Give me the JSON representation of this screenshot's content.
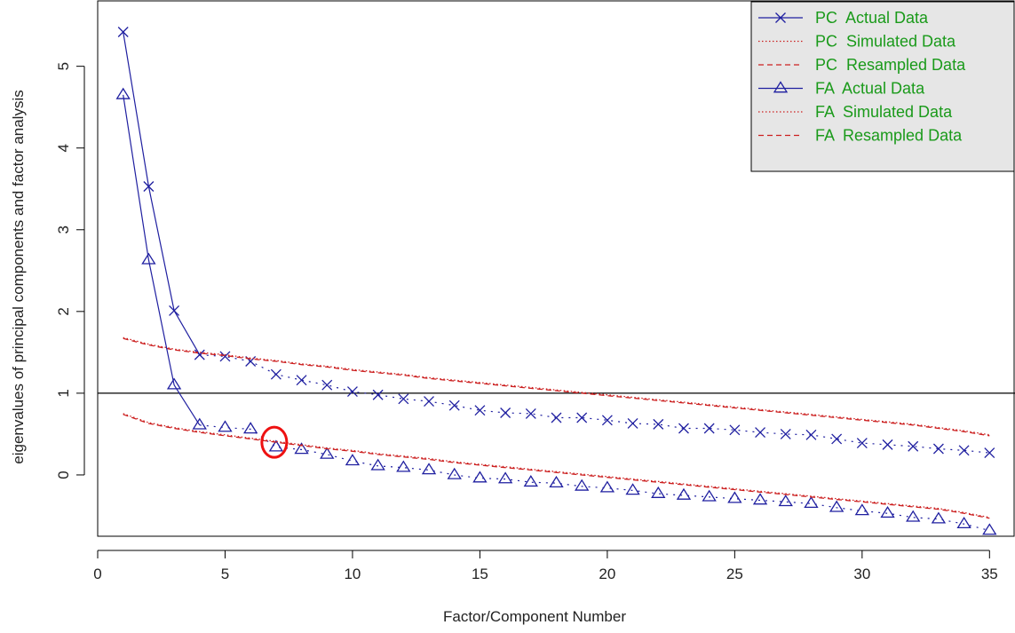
{
  "colors": {
    "actual": "#1f1fa0",
    "simulated": "#cc2020",
    "resampled": "#cc2020",
    "legend_text": "#1a9a1a",
    "legend_bg": "#e6e6e6",
    "highlight": "#ee1111",
    "reference_line": "#000000"
  },
  "chart_data": {
    "type": "line",
    "title": "",
    "xlabel": "Factor/Component Number",
    "ylabel": "eigenvalues of principal components and factor analysis",
    "xlim": [
      0,
      36
    ],
    "ylim": [
      -0.75,
      5.8
    ],
    "xticks": [
      0,
      5,
      10,
      15,
      20,
      25,
      30,
      35
    ],
    "yticks": [
      0,
      1,
      2,
      3,
      4,
      5
    ],
    "reference_line_y": 1,
    "legend_position": "top-right",
    "x": [
      1,
      2,
      3,
      4,
      5,
      6,
      7,
      8,
      9,
      10,
      11,
      12,
      13,
      14,
      15,
      16,
      17,
      18,
      19,
      20,
      21,
      22,
      23,
      24,
      25,
      26,
      27,
      28,
      29,
      30,
      31,
      32,
      33,
      34,
      35
    ],
    "series": [
      {
        "name": "PC  Actual Data",
        "marker": "x",
        "values": [
          5.42,
          3.53,
          2.01,
          1.47,
          1.45,
          1.39,
          1.23,
          1.16,
          1.1,
          1.02,
          0.98,
          0.93,
          0.9,
          0.85,
          0.79,
          0.76,
          0.75,
          0.7,
          0.7,
          0.67,
          0.63,
          0.62,
          0.57,
          0.57,
          0.55,
          0.52,
          0.5,
          0.49,
          0.44,
          0.39,
          0.37,
          0.35,
          0.32,
          0.3,
          0.27
        ]
      },
      {
        "name": "PC  Simulated Data",
        "style": "dotted",
        "values": [
          1.68,
          1.6,
          1.54,
          1.5,
          1.47,
          1.43,
          1.4,
          1.36,
          1.33,
          1.29,
          1.26,
          1.23,
          1.19,
          1.16,
          1.13,
          1.1,
          1.07,
          1.04,
          1.01,
          0.98,
          0.95,
          0.92,
          0.89,
          0.86,
          0.83,
          0.8,
          0.77,
          0.74,
          0.71,
          0.68,
          0.65,
          0.62,
          0.58,
          0.54,
          0.49
        ]
      },
      {
        "name": "PC  Resampled Data",
        "style": "dashed",
        "values": [
          1.67,
          1.59,
          1.53,
          1.49,
          1.46,
          1.42,
          1.39,
          1.35,
          1.32,
          1.28,
          1.25,
          1.22,
          1.18,
          1.15,
          1.12,
          1.09,
          1.06,
          1.03,
          1.0,
          0.97,
          0.94,
          0.91,
          0.88,
          0.85,
          0.82,
          0.79,
          0.76,
          0.73,
          0.7,
          0.67,
          0.64,
          0.61,
          0.57,
          0.53,
          0.48
        ]
      },
      {
        "name": "FA  Actual Data",
        "marker": "triangle",
        "values": [
          4.65,
          2.63,
          1.1,
          0.61,
          0.58,
          0.56,
          0.34,
          0.31,
          0.25,
          0.17,
          0.11,
          0.09,
          0.06,
          0.0,
          -0.04,
          -0.05,
          -0.09,
          -0.1,
          -0.14,
          -0.16,
          -0.19,
          -0.23,
          -0.25,
          -0.27,
          -0.29,
          -0.31,
          -0.33,
          -0.35,
          -0.4,
          -0.44,
          -0.47,
          -0.52,
          -0.54,
          -0.6,
          -0.68
        ]
      },
      {
        "name": "FA  Simulated Data",
        "style": "dotted",
        "values": [
          0.75,
          0.64,
          0.58,
          0.53,
          0.49,
          0.45,
          0.41,
          0.37,
          0.33,
          0.3,
          0.26,
          0.23,
          0.2,
          0.16,
          0.13,
          0.1,
          0.07,
          0.04,
          0.01,
          -0.02,
          -0.05,
          -0.08,
          -0.11,
          -0.14,
          -0.17,
          -0.2,
          -0.23,
          -0.26,
          -0.29,
          -0.32,
          -0.35,
          -0.38,
          -0.41,
          -0.46,
          -0.52
        ]
      },
      {
        "name": "FA  Resampled Data",
        "style": "dashed",
        "values": [
          0.74,
          0.63,
          0.57,
          0.52,
          0.48,
          0.44,
          0.4,
          0.36,
          0.32,
          0.29,
          0.25,
          0.22,
          0.19,
          0.15,
          0.12,
          0.09,
          0.06,
          0.03,
          0.0,
          -0.03,
          -0.06,
          -0.09,
          -0.12,
          -0.15,
          -0.18,
          -0.21,
          -0.24,
          -0.27,
          -0.3,
          -0.33,
          -0.36,
          -0.39,
          -0.42,
          -0.47,
          -0.53
        ]
      }
    ],
    "annotations": [
      {
        "type": "circle",
        "x": 7,
        "y": 0.4,
        "color": "#ee1111"
      }
    ]
  }
}
